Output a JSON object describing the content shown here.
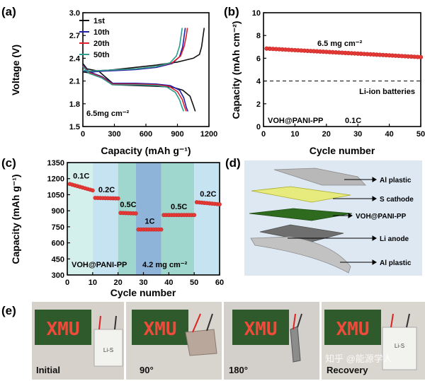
{
  "colors": {
    "black": "#111111",
    "blue": "#1f1fa8",
    "red": "#e0202a",
    "teal": "#2a9d8f",
    "dot": "#e53935",
    "dot_edge": "#c62828",
    "diagram_bg": "#dde8f3"
  },
  "chart_data": [
    {
      "id": "a",
      "type": "line",
      "panel_label": "(a)",
      "xlabel": "Capacity (mAh g⁻¹)",
      "ylabel": "Voltage (V)",
      "xlim": [
        0,
        1200
      ],
      "ylim": [
        1.5,
        3.0
      ],
      "xticks": [
        0,
        300,
        600,
        900,
        1200
      ],
      "yticks": [
        1.5,
        1.8,
        2.1,
        2.4,
        2.7,
        3.0
      ],
      "annotation": "6.5mg cm⁻²",
      "legend_position": "top-left",
      "series": [
        {
          "name": "1st",
          "color": "#111111",
          "discharge": [
            [
              0,
              2.33
            ],
            [
              40,
              2.26
            ],
            [
              150,
              2.23
            ],
            [
              300,
              2.05
            ],
            [
              500,
              2.04
            ],
            [
              700,
              2.03
            ],
            [
              850,
              2.02
            ],
            [
              950,
              1.98
            ],
            [
              1020,
              1.9
            ],
            [
              1050,
              1.78
            ],
            [
              1070,
              1.7
            ]
          ],
          "charge": [
            [
              0,
              2.22
            ],
            [
              50,
              2.21
            ],
            [
              150,
              2.23
            ],
            [
              300,
              2.25
            ],
            [
              500,
              2.28
            ],
            [
              700,
              2.31
            ],
            [
              900,
              2.35
            ],
            [
              1050,
              2.4
            ],
            [
              1110,
              2.45
            ],
            [
              1130,
              2.55
            ],
            [
              1145,
              2.7
            ],
            [
              1155,
              2.8
            ]
          ]
        },
        {
          "name": "10th",
          "color": "#1f1fa8",
          "discharge": [
            [
              0,
              2.31
            ],
            [
              60,
              2.22
            ],
            [
              180,
              2.16
            ],
            [
              280,
              2.07
            ],
            [
              500,
              2.07
            ],
            [
              700,
              2.06
            ],
            [
              830,
              2.04
            ],
            [
              920,
              1.98
            ],
            [
              960,
              1.88
            ],
            [
              985,
              1.75
            ],
            [
              1000,
              1.7
            ]
          ],
          "charge": [
            [
              0,
              2.23
            ],
            [
              80,
              2.22
            ],
            [
              200,
              2.23
            ],
            [
              350,
              2.24
            ],
            [
              500,
              2.25
            ],
            [
              700,
              2.28
            ],
            [
              850,
              2.33
            ],
            [
              920,
              2.42
            ],
            [
              950,
              2.55
            ],
            [
              965,
              2.7
            ],
            [
              975,
              2.8
            ]
          ]
        },
        {
          "name": "20th",
          "color": "#e0202a",
          "discharge": [
            [
              0,
              2.3
            ],
            [
              60,
              2.21
            ],
            [
              180,
              2.15
            ],
            [
              280,
              2.06
            ],
            [
              500,
              2.06
            ],
            [
              700,
              2.05
            ],
            [
              820,
              2.03
            ],
            [
              900,
              1.96
            ],
            [
              945,
              1.86
            ],
            [
              970,
              1.75
            ],
            [
              985,
              1.7
            ]
          ],
          "charge": [
            [
              0,
              2.24
            ],
            [
              80,
              2.23
            ],
            [
              200,
              2.24
            ],
            [
              350,
              2.25
            ],
            [
              500,
              2.26
            ],
            [
              700,
              2.29
            ],
            [
              850,
              2.34
            ],
            [
              930,
              2.43
            ],
            [
              965,
              2.56
            ],
            [
              985,
              2.7
            ],
            [
              995,
              2.8
            ]
          ]
        },
        {
          "name": "50th",
          "color": "#2a9d8f",
          "discharge": [
            [
              0,
              2.29
            ],
            [
              60,
              2.2
            ],
            [
              180,
              2.14
            ],
            [
              280,
              2.05
            ],
            [
              500,
              2.05
            ],
            [
              700,
              2.04
            ],
            [
              800,
              2.02
            ],
            [
              880,
              1.95
            ],
            [
              920,
              1.85
            ],
            [
              945,
              1.75
            ],
            [
              960,
              1.7
            ]
          ],
          "charge": [
            [
              0,
              2.24
            ],
            [
              80,
              2.23
            ],
            [
              200,
              2.24
            ],
            [
              350,
              2.25
            ],
            [
              500,
              2.26
            ],
            [
              700,
              2.29
            ],
            [
              830,
              2.34
            ],
            [
              890,
              2.43
            ],
            [
              920,
              2.56
            ],
            [
              935,
              2.7
            ],
            [
              945,
              2.8
            ]
          ]
        }
      ]
    },
    {
      "id": "b",
      "type": "scatter",
      "panel_label": "(b)",
      "xlabel": "Cycle number",
      "ylabel": "Capacity (mAh cm⁻²)",
      "xlim": [
        0,
        50
      ],
      "ylim": [
        0,
        10
      ],
      "xticks": [
        0,
        10,
        20,
        30,
        40,
        50
      ],
      "yticks": [
        0,
        2,
        4,
        6,
        8,
        10
      ],
      "x_start": 1,
      "x_end": 50,
      "y_start": 6.85,
      "y_end": 6.1,
      "reference_line": {
        "y": 4.0,
        "label": "Li-ion batteries"
      },
      "annotations": [
        "6.5 mg cm⁻²",
        "VOH@PANI-PP",
        "0.1C"
      ]
    },
    {
      "id": "c",
      "type": "scatter",
      "panel_label": "(c)",
      "xlabel": "Cycle number",
      "ylabel": "Capacity (mAh g⁻¹)",
      "xlim": [
        0,
        60
      ],
      "ylim": [
        300,
        1350
      ],
      "xticks": [
        0,
        10,
        20,
        30,
        40,
        50,
        60
      ],
      "yticks": [
        300,
        450,
        600,
        750,
        900,
        1050,
        1200,
        1350
      ],
      "segments": [
        {
          "rate": "0.1C",
          "from": 1,
          "to": 10,
          "start": 1150,
          "end": 1090,
          "color": "#d4f0ec"
        },
        {
          "rate": "0.2C",
          "from": 11,
          "to": 20,
          "start": 1020,
          "end": 1015,
          "color": "#c6e3f2"
        },
        {
          "rate": "0.5C",
          "from": 21,
          "to": 27,
          "start": 880,
          "end": 875,
          "color": "#9fd6cd"
        },
        {
          "rate": "1C",
          "from": 28,
          "to": 37,
          "start": 725,
          "end": 725,
          "color": "#8fb4d9"
        },
        {
          "rate": "0.5C",
          "from": 38,
          "to": 50,
          "start": 860,
          "end": 860,
          "color": "#9fd6cd"
        },
        {
          "rate": "0.2C",
          "from": 51,
          "to": 60,
          "start": 980,
          "end": 960,
          "color": "#c6e3f2"
        }
      ],
      "annotations": [
        "VOH@PANI-PP",
        "4.2 mg cm⁻²"
      ]
    }
  ],
  "panel_d": {
    "label": "(d)",
    "layers": [
      "Al plastic",
      "S cathode",
      "VOH@PANI-PP",
      "Li anode",
      "Al plastic"
    ]
  },
  "panel_e": {
    "label": "(e)",
    "board_text": "XMU",
    "pouch_text": "Li-S",
    "photos": [
      "Initial",
      "90°",
      "180°",
      "Recovery"
    ],
    "watermark": "知乎 @能源学人"
  }
}
